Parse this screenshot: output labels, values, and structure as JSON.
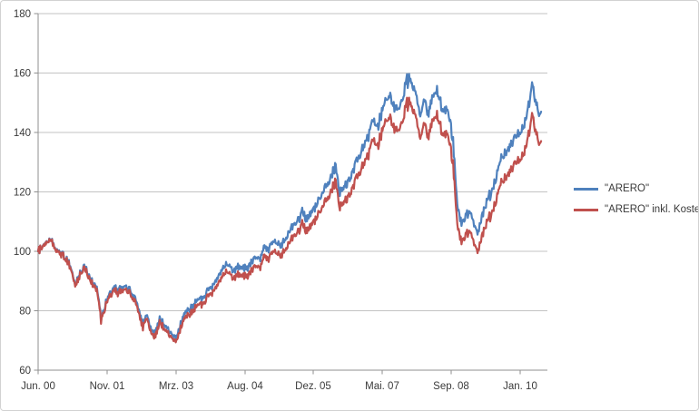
{
  "chart_data": {
    "type": "line",
    "title": "",
    "grid": true,
    "legend_position": "right",
    "y_min": 60,
    "y_max": 180,
    "y_step": 20,
    "y_tick_labels": [
      "180",
      "160",
      "140",
      "120",
      "100",
      "80",
      "60"
    ],
    "x_tick_labels": [
      "Jun. 00",
      "Nov. 01",
      "Mrz. 03",
      "Aug. 04",
      "Dez. 05",
      "Mai. 07",
      "Sep. 08",
      "Jan. 10"
    ],
    "x_interval": "monthly values starting Jun. 00, ending Jun. 10",
    "series": [
      {
        "name": "\"ARERO\"",
        "color": "#4F81BD",
        "values": [
          100,
          101.5,
          103,
          104.5,
          101,
          99.5,
          99,
          97,
          94,
          89,
          93,
          95,
          92,
          90,
          88,
          77.5,
          82,
          86,
          87.5,
          87,
          87.5,
          88.5,
          86.5,
          84.5,
          80,
          75.5,
          79,
          73.5,
          72.5,
          77.5,
          75.5,
          73.5,
          72,
          71.5,
          75.5,
          78.5,
          80.5,
          81.5,
          84,
          83.5,
          86,
          87.5,
          89,
          91.5,
          94,
          96.5,
          94,
          93.5,
          95,
          94.5,
          94,
          96.5,
          98,
          97.5,
          101.5,
          100.5,
          104,
          103,
          101.5,
          104.5,
          107,
          108.5,
          110.5,
          113.5,
          110.5,
          112.5,
          114.5,
          117.5,
          120,
          122.5,
          125.5,
          129,
          119.5,
          121,
          124,
          127,
          130.5,
          133.5,
          136.5,
          140,
          144.5,
          142,
          147,
          150.5,
          152.5,
          149,
          147.5,
          152,
          157,
          159,
          153,
          146.5,
          149.5,
          147,
          151,
          154.5,
          150,
          147,
          146,
          137,
          115,
          109,
          112,
          113.5,
          109,
          106.5,
          112,
          117,
          119.5,
          123.5,
          129.5,
          132.5,
          134,
          136,
          139.5,
          140.5,
          143,
          150,
          156.5,
          148.5,
          147
        ]
      },
      {
        "name": "\"ARERO\" inkl. Kosten",
        "color": "#C0504D",
        "values": [
          100,
          101.4,
          102.9,
          104.3,
          100.8,
          99.2,
          98.7,
          96.6,
          93.6,
          88.5,
          92.5,
          94.4,
          91.4,
          89.3,
          87.3,
          76.8,
          81.2,
          85.1,
          86.6,
          86.0,
          86.5,
          87.4,
          85.4,
          83.4,
          78.9,
          74.4,
          77.8,
          72.3,
          71.3,
          76.2,
          74.2,
          72.2,
          70.7,
          70.1,
          74.0,
          76.9,
          78.8,
          79.8,
          82.2,
          81.6,
          84.0,
          85.4,
          86.8,
          89.2,
          91.6,
          94.0,
          91.5,
          91.0,
          92.4,
          91.8,
          91.3,
          93.7,
          95.1,
          94.5,
          98.4,
          97.3,
          100.7,
          99.6,
          98.1,
          101.0,
          103.3,
          104.7,
          106.6,
          109.4,
          106.5,
          108.3,
          110.2,
          113.0,
          115.3,
          117.7,
          120.5,
          123.8,
          114.6,
          116.0,
          118.8,
          121.6,
          124.9,
          127.7,
          130.4,
          133.7,
          137.9,
          135.5,
          140.2,
          143.4,
          145.2,
          141.8,
          140.3,
          144.5,
          149.2,
          151.0,
          145.2,
          138.9,
          141.7,
          139.3,
          143.0,
          146.2,
          141.9,
          138.9,
          137.9,
          129.3,
          108.5,
          102.8,
          105.6,
          106.9,
          102.6,
          100.2,
          105.3,
          110.0,
          112.2,
          115.9,
          121.5,
          124.2,
          125.6,
          127.4,
          130.6,
          131.4,
          133.7,
          140.2,
          146.2,
          138.6,
          137.1
        ]
      }
    ]
  }
}
